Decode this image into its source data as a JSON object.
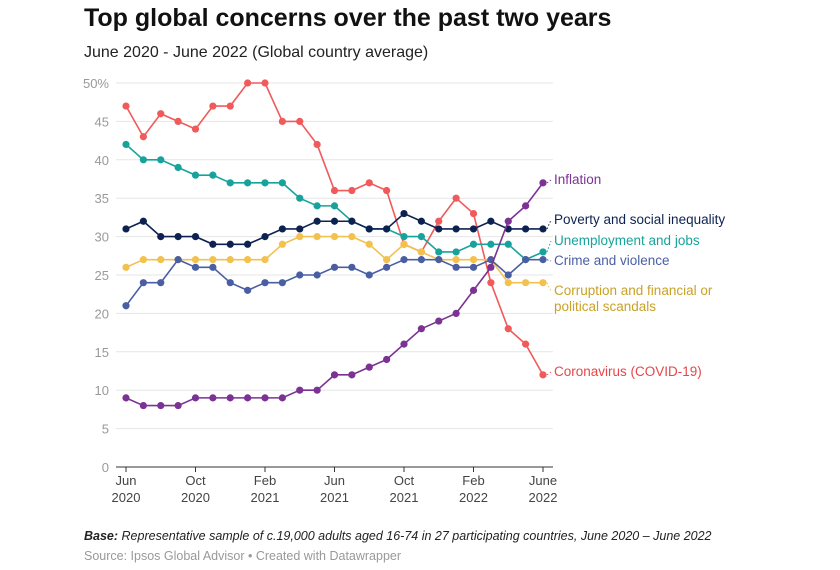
{
  "chart_data": {
    "type": "line",
    "title": "Top global concerns over the past two years",
    "subtitle": "June 2020 - June 2022 (Global country average)",
    "x": [
      "2020-06",
      "2020-07",
      "2020-08",
      "2020-09",
      "2020-10",
      "2020-11",
      "2020-12",
      "2021-01",
      "2021-02",
      "2021-03",
      "2021-04",
      "2021-05",
      "2021-06",
      "2021-07",
      "2021-08",
      "2021-09",
      "2021-10",
      "2021-11",
      "2021-12",
      "2022-01",
      "2022-02",
      "2022-03",
      "2022-04",
      "2022-05",
      "2022-06"
    ],
    "x_ticks": [
      {
        "index": 0,
        "l1": "Jun",
        "l2": "2020"
      },
      {
        "index": 4,
        "l1": "Oct",
        "l2": "2020"
      },
      {
        "index": 8,
        "l1": "Feb",
        "l2": "2021"
      },
      {
        "index": 12,
        "l1": "Jun",
        "l2": "2021"
      },
      {
        "index": 16,
        "l1": "Oct",
        "l2": "2021"
      },
      {
        "index": 20,
        "l1": "Feb",
        "l2": "2022"
      },
      {
        "index": 24,
        "l1": "June",
        "l2": "2022"
      }
    ],
    "y_ticks": [
      "0",
      "5",
      "10",
      "15",
      "20",
      "25",
      "30",
      "35",
      "40",
      "45",
      "50%"
    ],
    "ylim": [
      0,
      50
    ],
    "grid": true,
    "legend": "direct labels right",
    "series": [
      {
        "name": "Coronavirus (COVID-19)",
        "color": "#f05a5b",
        "label_color": "#e5474a",
        "values": [
          47,
          43,
          46,
          45,
          44,
          47,
          47,
          50,
          50,
          45,
          45,
          42,
          36,
          36,
          37,
          36,
          29,
          28,
          32,
          35,
          33,
          24,
          18,
          16,
          12
        ]
      },
      {
        "name": "Unemployment and jobs",
        "color": "#17a39b",
        "label_color": "#17a39b",
        "values": [
          42,
          40,
          40,
          39,
          38,
          38,
          37,
          37,
          37,
          37,
          35,
          34,
          34,
          32,
          31,
          31,
          30,
          30,
          28,
          28,
          29,
          29,
          29,
          27,
          28
        ]
      },
      {
        "name": "Poverty and social inequality",
        "color": "#0d2250",
        "label_color": "#0d2250",
        "values": [
          31,
          32,
          30,
          30,
          30,
          29,
          29,
          29,
          30,
          31,
          31,
          32,
          32,
          32,
          31,
          31,
          33,
          32,
          31,
          31,
          31,
          32,
          31,
          31,
          31
        ]
      },
      {
        "name": "Corruption and financial or political scandals",
        "color": "#f2c14e",
        "label_color": "#c9a227",
        "values": [
          26,
          27,
          27,
          27,
          27,
          27,
          27,
          27,
          27,
          29,
          30,
          30,
          30,
          30,
          29,
          27,
          29,
          28,
          27,
          27,
          27,
          27,
          24,
          24,
          24
        ]
      },
      {
        "name": "Crime and violence",
        "color": "#4a5fa3",
        "label_color": "#4a5fa3",
        "values": [
          21,
          24,
          24,
          27,
          26,
          26,
          24,
          23,
          24,
          24,
          25,
          25,
          26,
          26,
          25,
          26,
          27,
          27,
          27,
          26,
          26,
          27,
          25,
          27,
          27
        ]
      },
      {
        "name": "Inflation",
        "color": "#7b3294",
        "label_color": "#7b3294",
        "values": [
          9,
          8,
          8,
          8,
          9,
          9,
          9,
          9,
          9,
          9,
          10,
          10,
          12,
          12,
          13,
          14,
          16,
          18,
          19,
          20,
          23,
          26,
          32,
          34,
          37
        ]
      }
    ],
    "labels": [
      {
        "series": 5,
        "lines": [
          "Inflation"
        ]
      },
      {
        "series": 2,
        "lines": [
          "Poverty and social inequality"
        ]
      },
      {
        "series": 1,
        "lines": [
          "Unemployment and jobs"
        ]
      },
      {
        "series": 4,
        "lines": [
          "Crime and violence"
        ]
      },
      {
        "series": 3,
        "lines": [
          "Corruption and financial or",
          "political scandals"
        ]
      },
      {
        "series": 0,
        "lines": [
          "Coronavirus (COVID-19)"
        ]
      }
    ]
  },
  "footer": {
    "note_label": "Base:",
    "note_text": " Representative sample of c.19,000 adults aged 16-74 in 27 participating countries, June 2020 – June 2022",
    "source": "Source: Ipsos Global Advisor • Created with Datawrapper"
  }
}
